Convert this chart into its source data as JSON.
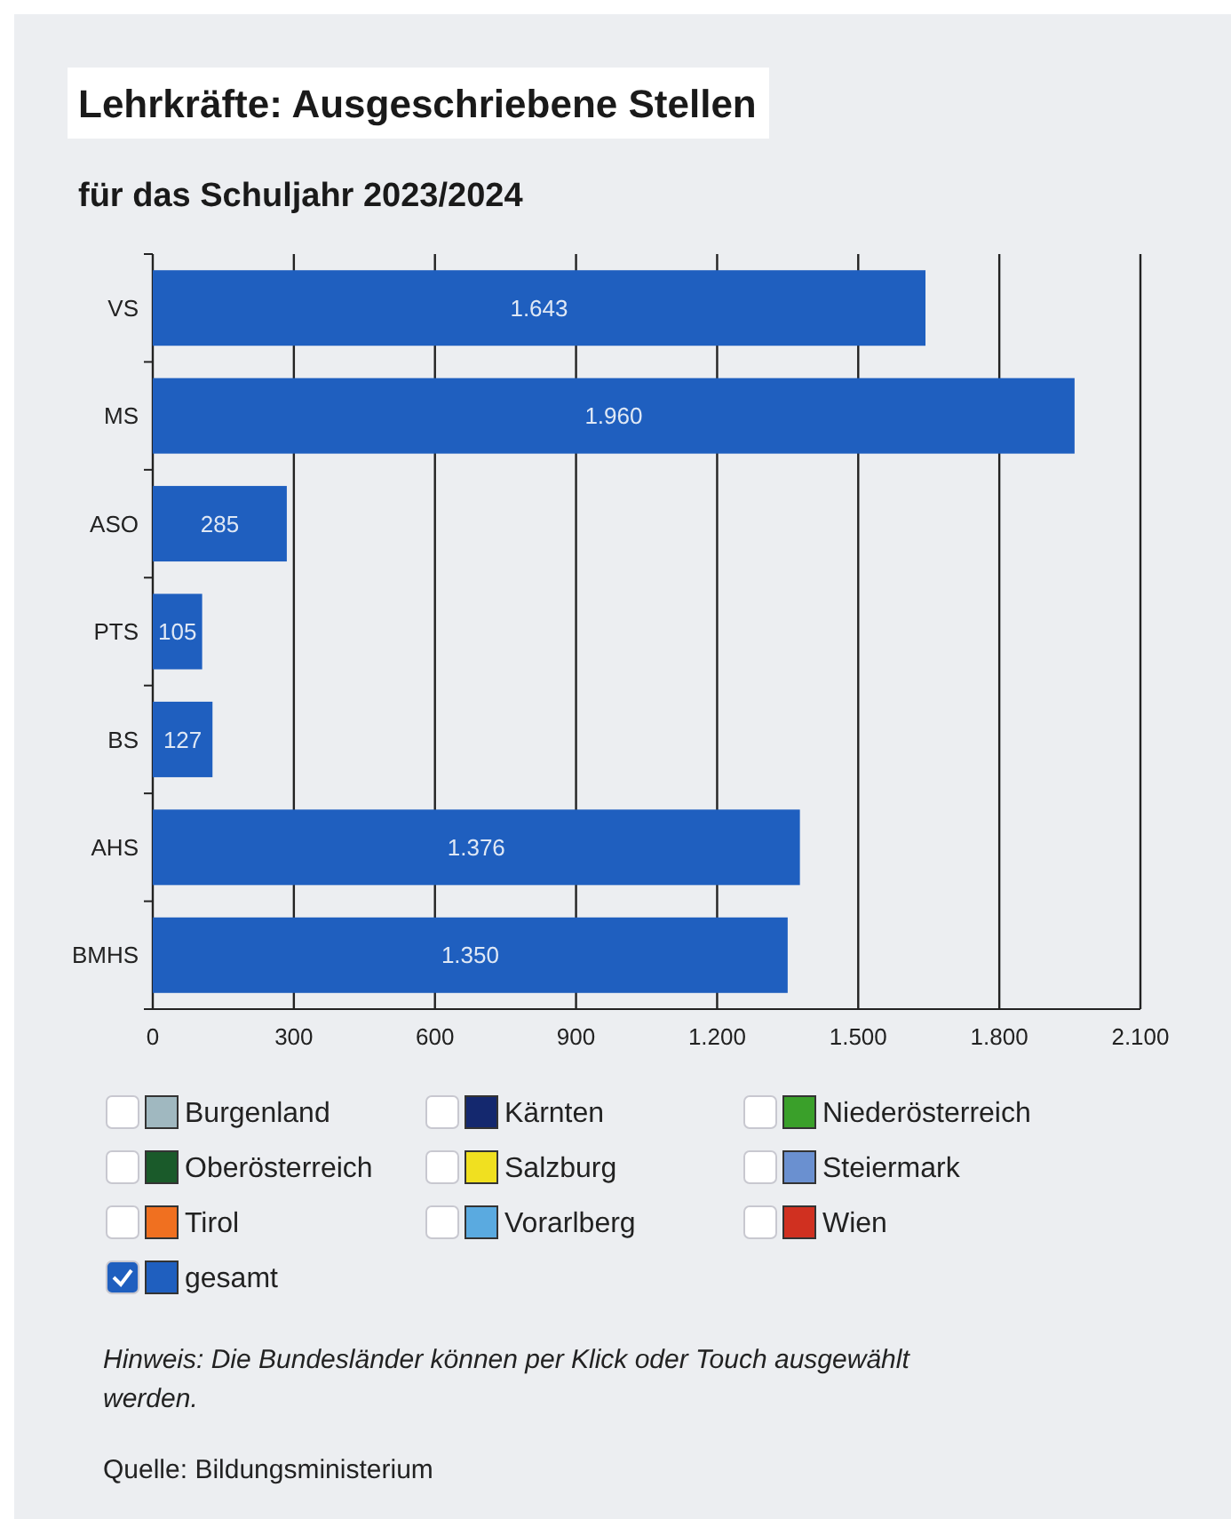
{
  "chart_data": {
    "type": "bar",
    "orientation": "horizontal",
    "title": "Lehrkräfte: Ausgeschriebene Stellen",
    "subtitle": "für das Schuljahr 2023/2024",
    "categories": [
      "VS",
      "MS",
      "ASO",
      "PTS",
      "BS",
      "AHS",
      "BMHS"
    ],
    "series": [
      {
        "name": "Burgenland",
        "color": "#a0b8c0",
        "values": [
          null,
          null,
          null,
          null,
          null,
          null,
          null
        ]
      },
      {
        "name": "Kärnten",
        "color": "#14286e",
        "values": [
          null,
          null,
          null,
          null,
          null,
          null,
          null
        ]
      },
      {
        "name": "Niederösterreich",
        "color": "#3aa02a",
        "values": [
          null,
          null,
          null,
          null,
          null,
          null,
          null
        ]
      },
      {
        "name": "Oberösterreich",
        "color": "#1a5a2a",
        "values": [
          null,
          null,
          null,
          null,
          null,
          null,
          null
        ]
      },
      {
        "name": "Salzburg",
        "color": "#f0e020",
        "values": [
          null,
          null,
          null,
          null,
          null,
          null,
          null
        ]
      },
      {
        "name": "Steiermark",
        "color": "#6a90d0",
        "values": [
          null,
          null,
          null,
          null,
          null,
          null,
          null
        ]
      },
      {
        "name": "Tirol",
        "color": "#f07020",
        "values": [
          null,
          null,
          null,
          null,
          null,
          null,
          null
        ]
      },
      {
        "name": "Vorarlberg",
        "color": "#5aaae0",
        "values": [
          null,
          null,
          null,
          null,
          null,
          null,
          null
        ]
      },
      {
        "name": "Wien",
        "color": "#d03020",
        "values": [
          null,
          null,
          null,
          null,
          null,
          null,
          null
        ]
      },
      {
        "name": "gesamt",
        "color": "#1f5fbf",
        "values": [
          1643,
          1960,
          285,
          105,
          127,
          1376,
          1350
        ],
        "value_labels": [
          "1.643",
          "1.960",
          "285",
          "105",
          "127",
          "1.376",
          "1.350"
        ]
      }
    ],
    "xlim": [
      0,
      2100
    ],
    "xticks": [
      0,
      300,
      600,
      900,
      {
        "value": 1200,
        "label": "1.200"
      },
      {
        "value": 1500,
        "label": "1.500"
      },
      {
        "value": 1800,
        "label": "1.800"
      },
      {
        "value": 2100,
        "label": "2.100"
      }
    ],
    "grid": "x",
    "legend": "bottom",
    "annotations": [
      "Hinweis: Die Bundesländer können per Klick oder Touch ausgewählt werden.",
      "Quelle: Bildungsministerium"
    ]
  }
}
